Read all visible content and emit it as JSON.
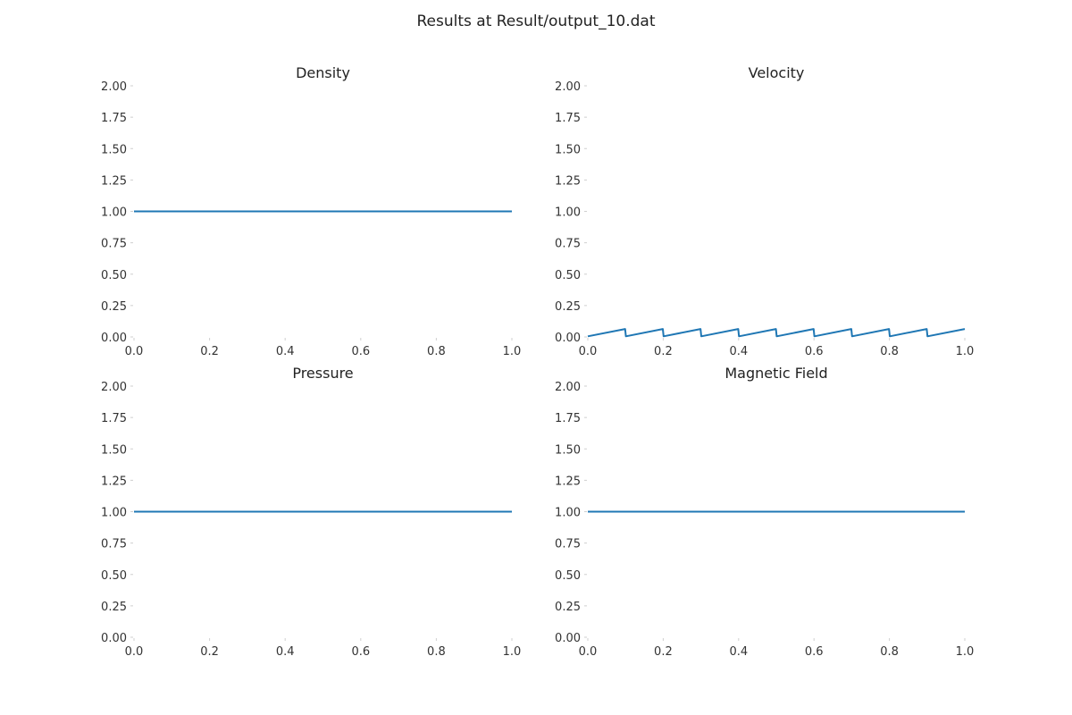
{
  "figure": {
    "suptitle": "Results at Result/output_10.dat"
  },
  "colors": {
    "line": "#1f77b4",
    "text": "#222222",
    "tick": "#cfcfcf"
  },
  "chart_data": [
    {
      "type": "line",
      "title": "Density",
      "xlim": [
        0.0,
        1.0
      ],
      "ylim": [
        0.0,
        2.0
      ],
      "xticks": [
        0.0,
        0.2,
        0.4,
        0.6,
        0.8,
        1.0
      ],
      "xtick_labels": [
        "0.0",
        "0.2",
        "0.4",
        "0.6",
        "0.8",
        "1.0"
      ],
      "yticks": [
        0.0,
        0.25,
        0.5,
        0.75,
        1.0,
        1.25,
        1.5,
        1.75,
        2.0
      ],
      "ytick_labels": [
        "0.00",
        "0.25",
        "0.50",
        "0.75",
        "1.00",
        "1.25",
        "1.50",
        "1.75",
        "2.00"
      ],
      "grid": false,
      "series": [
        {
          "x": [
            0.0,
            1.0
          ],
          "y": [
            1.0,
            1.0
          ]
        }
      ]
    },
    {
      "type": "line",
      "title": "Velocity",
      "xlim": [
        0.0,
        1.0
      ],
      "ylim": [
        0.0,
        2.0
      ],
      "xticks": [
        0.0,
        0.2,
        0.4,
        0.6,
        0.8,
        1.0
      ],
      "xtick_labels": [
        "0.0",
        "0.2",
        "0.4",
        "0.6",
        "0.8",
        "1.0"
      ],
      "yticks": [
        0.0,
        0.25,
        0.5,
        0.75,
        1.0,
        1.25,
        1.5,
        1.75,
        2.0
      ],
      "ytick_labels": [
        "0.00",
        "0.25",
        "0.50",
        "0.75",
        "1.00",
        "1.25",
        "1.50",
        "1.75",
        "2.00"
      ],
      "grid": false,
      "series": [
        {
          "x": [
            0.0,
            0.099,
            0.101,
            0.199,
            0.201,
            0.299,
            0.301,
            0.399,
            0.401,
            0.499,
            0.501,
            0.599,
            0.601,
            0.699,
            0.701,
            0.799,
            0.801,
            0.899,
            0.901,
            1.0
          ],
          "y": [
            0.005,
            0.063,
            0.005,
            0.063,
            0.005,
            0.063,
            0.005,
            0.063,
            0.005,
            0.063,
            0.005,
            0.063,
            0.005,
            0.063,
            0.005,
            0.063,
            0.005,
            0.063,
            0.005,
            0.063
          ]
        }
      ]
    },
    {
      "type": "line",
      "title": "Pressure",
      "xlim": [
        0.0,
        1.0
      ],
      "ylim": [
        0.0,
        2.0
      ],
      "xticks": [
        0.0,
        0.2,
        0.4,
        0.6,
        0.8,
        1.0
      ],
      "xtick_labels": [
        "0.0",
        "0.2",
        "0.4",
        "0.6",
        "0.8",
        "1.0"
      ],
      "yticks": [
        0.0,
        0.25,
        0.5,
        0.75,
        1.0,
        1.25,
        1.5,
        1.75,
        2.0
      ],
      "ytick_labels": [
        "0.00",
        "0.25",
        "0.50",
        "0.75",
        "1.00",
        "1.25",
        "1.50",
        "1.75",
        "2.00"
      ],
      "grid": false,
      "series": [
        {
          "x": [
            0.0,
            1.0
          ],
          "y": [
            1.0,
            1.0
          ]
        }
      ]
    },
    {
      "type": "line",
      "title": "Magnetic Field",
      "xlim": [
        0.0,
        1.0
      ],
      "ylim": [
        0.0,
        2.0
      ],
      "xticks": [
        0.0,
        0.2,
        0.4,
        0.6,
        0.8,
        1.0
      ],
      "xtick_labels": [
        "0.0",
        "0.2",
        "0.4",
        "0.6",
        "0.8",
        "1.0"
      ],
      "yticks": [
        0.0,
        0.25,
        0.5,
        0.75,
        1.0,
        1.25,
        1.5,
        1.75,
        2.0
      ],
      "ytick_labels": [
        "0.00",
        "0.25",
        "0.50",
        "0.75",
        "1.00",
        "1.25",
        "1.50",
        "1.75",
        "2.00"
      ],
      "grid": false,
      "series": [
        {
          "x": [
            0.0,
            1.0
          ],
          "y": [
            1.0,
            1.0
          ]
        }
      ]
    }
  ]
}
